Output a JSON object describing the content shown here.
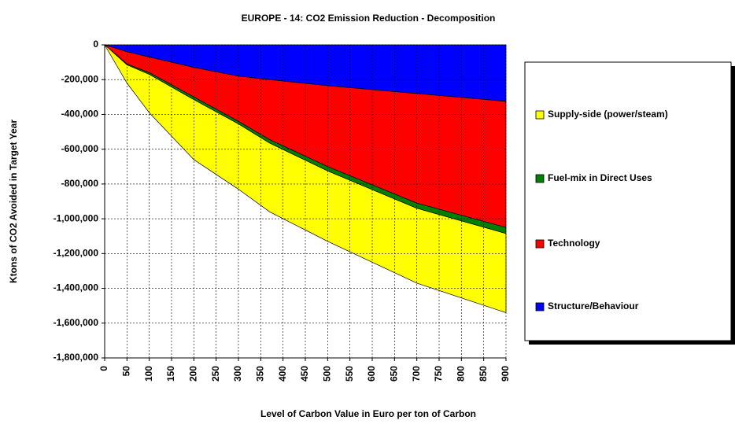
{
  "chart_data": {
    "type": "stacked_area",
    "title": "EUROPE - 14: CO2 Emission Reduction - Decomposition",
    "x_label": "Level of Carbon Value in Euro per ton of Carbon",
    "y_label": "Ktons of CO2 Avoided in Target Year",
    "x": [
      0,
      50,
      100,
      200,
      300,
      370,
      500,
      700,
      900
    ],
    "series": [
      {
        "name": "Supply-side (power/steam)",
        "color": "#ffff00",
        "values": [
          0,
          -105000,
          -220000,
          -345000,
          -375000,
          -395000,
          -405000,
          -430000,
          -455000
        ]
      },
      {
        "name": "Fuel-mix in Direct Uses",
        "color": "#008000",
        "values": [
          0,
          -5000,
          -10000,
          -15000,
          -15000,
          -20000,
          -25000,
          -30000,
          -35000
        ]
      },
      {
        "name": "Technology",
        "color": "#ff0000",
        "values": [
          0,
          -70000,
          -90000,
          -170000,
          -260000,
          -345000,
          -465000,
          -630000,
          -725000
        ]
      },
      {
        "name": "Structure/Behaviour",
        "color": "#0000ff",
        "values": [
          0,
          -40000,
          -70000,
          -130000,
          -180000,
          -200000,
          -235000,
          -280000,
          -325000
        ]
      }
    ],
    "xlim": [
      0,
      900
    ],
    "xticks": [
      0,
      50,
      100,
      150,
      200,
      250,
      300,
      350,
      400,
      450,
      500,
      550,
      600,
      650,
      700,
      750,
      800,
      850,
      900
    ],
    "ylim": [
      -1800000,
      0
    ],
    "yticks": [
      0,
      {
        "value": -200000,
        "label": "-200,000"
      },
      {
        "value": -400000,
        "label": "-400,000"
      },
      {
        "value": -600000,
        "label": "-600,000"
      },
      {
        "value": -800000,
        "label": "-800,000"
      },
      {
        "value": -1000000,
        "label": "-1,000,000"
      },
      {
        "value": -1200000,
        "label": "-1,200,000"
      },
      {
        "value": -1400000,
        "label": "-1,400,000"
      },
      {
        "value": -1600000,
        "label": "-1,600,000"
      },
      {
        "value": -1800000,
        "label": "-1,800,000"
      }
    ],
    "grid": true,
    "legend": "right"
  }
}
